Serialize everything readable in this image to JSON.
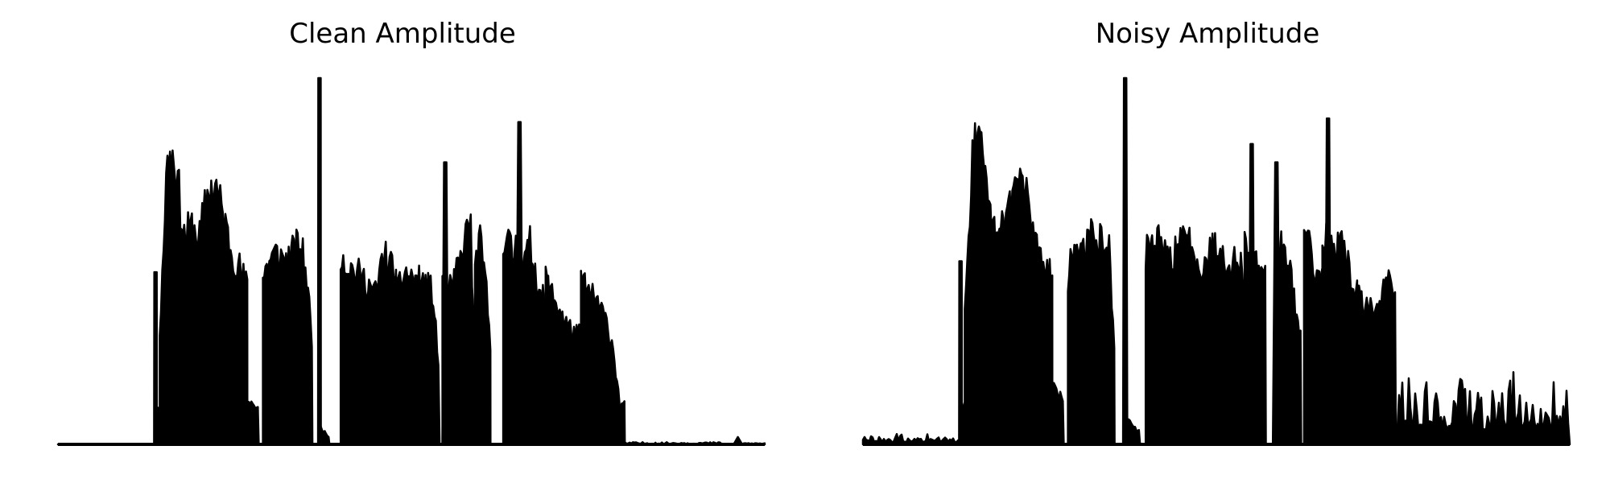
{
  "chart_data": [
    {
      "type": "line",
      "title": "Clean Amplitude",
      "axis_visible": false,
      "color": "#000000",
      "x_range": [
        0,
        500
      ],
      "ylim": [
        0,
        1.0
      ],
      "segments": [
        {
          "x": [
            0,
            68
          ],
          "type": "silence",
          "level": 0.0
        },
        {
          "x": [
            68,
            70
          ],
          "type": "spike",
          "peak": 0.47
        },
        {
          "x": [
            70,
            72
          ],
          "type": "burst",
          "profile": [
            0.1
          ]
        },
        {
          "x": [
            72,
            134
          ],
          "type": "burst",
          "profile": [
            0.35,
            0.88,
            0.85,
            0.62,
            0.65,
            0.62,
            0.75,
            0.78,
            0.68,
            0.58,
            0.53,
            0.47
          ]
        },
        {
          "x": [
            135,
            142
          ],
          "type": "burst",
          "profile": [
            0.13,
            0.12,
            0.11
          ]
        },
        {
          "x": [
            145,
            180
          ],
          "type": "burst",
          "profile": [
            0.5,
            0.55,
            0.57,
            0.56,
            0.55,
            0.58,
            0.6,
            0.52,
            0.3
          ]
        },
        {
          "x": [
            184,
            186
          ],
          "type": "spike",
          "peak": 1.0
        },
        {
          "x": [
            186,
            192
          ],
          "type": "burst",
          "profile": [
            0.05,
            0.02
          ]
        },
        {
          "x": [
            200,
            240
          ],
          "type": "burst",
          "profile": [
            0.58,
            0.53,
            0.52,
            0.5,
            0.48,
            0.45,
            0.57,
            0.54,
            0.5
          ]
        },
        {
          "x": [
            240,
            270
          ],
          "type": "burst",
          "profile": [
            0.45,
            0.52,
            0.5,
            0.49,
            0.48,
            0.46,
            0.2
          ]
        },
        {
          "x": [
            272,
            276
          ],
          "type": "spike",
          "peak": 0.77
        },
        {
          "x": [
            272,
            295
          ],
          "type": "burst",
          "profile": [
            0.5,
            0.49,
            0.45,
            0.52,
            0.55,
            0.62,
            0.7,
            0.2
          ]
        },
        {
          "x": [
            295,
            306
          ],
          "type": "burst",
          "profile": [
            0.55,
            0.6,
            0.5,
            0.3
          ]
        },
        {
          "x": [
            315,
            323
          ],
          "type": "burst",
          "profile": [
            0.63,
            0.6,
            0.55
          ]
        },
        {
          "x": [
            324,
            329
          ],
          "type": "spike",
          "peak": 0.88
        },
        {
          "x": [
            323,
            345
          ],
          "type": "burst",
          "profile": [
            0.6,
            0.58,
            0.55,
            0.6,
            0.52,
            0.45,
            0.42
          ]
        },
        {
          "x": [
            345,
            370
          ],
          "type": "burst",
          "profile": [
            0.5,
            0.45,
            0.42,
            0.38,
            0.35,
            0.33,
            0.33
          ]
        },
        {
          "x": [
            370,
            398
          ],
          "type": "burst",
          "profile": [
            0.5,
            0.45,
            0.43,
            0.38,
            0.3,
            0.1
          ]
        },
        {
          "x": [
            398,
            401
          ],
          "type": "burst",
          "profile": [
            0.12
          ]
        },
        {
          "x": [
            401,
            470
          ],
          "type": "silence",
          "level": 0.006
        },
        {
          "x": [
            478,
            484
          ],
          "type": "bump",
          "peak": 0.02
        },
        {
          "x": [
            484,
            500
          ],
          "type": "silence",
          "level": 0.004
        }
      ]
    },
    {
      "type": "line",
      "title": "Noisy Amplitude",
      "axis_visible": false,
      "color": "#000000",
      "x_range": [
        0,
        500
      ],
      "ylim": [
        0,
        1.0
      ],
      "segments": [
        {
          "x": [
            0,
            68
          ],
          "type": "noise",
          "level": 0.02
        },
        {
          "x": [
            68,
            70
          ],
          "type": "spike",
          "peak": 0.5
        },
        {
          "x": [
            70,
            72
          ],
          "type": "burst",
          "profile": [
            0.12
          ]
        },
        {
          "x": [
            72,
            134
          ],
          "type": "burst",
          "profile": [
            0.4,
            0.89,
            0.88,
            0.7,
            0.6,
            0.67,
            0.76,
            0.8,
            0.72,
            0.6,
            0.55,
            0.5
          ]
        },
        {
          "x": [
            135,
            142
          ],
          "type": "burst",
          "profile": [
            0.18,
            0.15,
            0.13
          ]
        },
        {
          "x": [
            145,
            178
          ],
          "type": "burst",
          "profile": [
            0.5,
            0.58,
            0.6,
            0.6,
            0.62,
            0.58,
            0.63,
            0.6,
            0.25
          ]
        },
        {
          "x": [
            184,
            187
          ],
          "type": "spike",
          "peak": 1.0
        },
        {
          "x": [
            187,
            196
          ],
          "type": "burst",
          "profile": [
            0.08,
            0.05,
            0.04
          ]
        },
        {
          "x": [
            200,
            240
          ],
          "type": "burst",
          "profile": [
            0.58,
            0.6,
            0.6,
            0.55,
            0.58,
            0.6,
            0.62,
            0.58,
            0.5
          ]
        },
        {
          "x": [
            240,
            270
          ],
          "type": "burst",
          "profile": [
            0.55,
            0.58,
            0.6,
            0.57,
            0.55,
            0.55,
            0.5
          ]
        },
        {
          "x": [
            273,
            277
          ],
          "type": "spike",
          "peak": 0.82
        },
        {
          "x": [
            270,
            285
          ],
          "type": "burst",
          "profile": [
            0.6,
            0.55,
            0.55,
            0.5
          ]
        },
        {
          "x": [
            290,
            295
          ],
          "type": "spike",
          "peak": 0.77
        },
        {
          "x": [
            295,
            310
          ],
          "type": "burst",
          "profile": [
            0.62,
            0.5,
            0.3
          ]
        },
        {
          "x": [
            312,
            325
          ],
          "type": "burst",
          "profile": [
            0.68,
            0.55,
            0.5
          ]
        },
        {
          "x": [
            327,
            331
          ],
          "type": "spike",
          "peak": 0.89
        },
        {
          "x": [
            325,
            350
          ],
          "type": "burst",
          "profile": [
            0.65,
            0.6,
            0.55,
            0.6,
            0.55,
            0.5,
            0.45
          ]
        },
        {
          "x": [
            350,
            377
          ],
          "type": "burst",
          "profile": [
            0.45,
            0.42,
            0.4,
            0.43,
            0.4,
            0.52,
            0.48,
            0.42
          ]
        },
        {
          "x": [
            377,
            500
          ],
          "type": "noise",
          "level": 0.13
        }
      ]
    }
  ]
}
